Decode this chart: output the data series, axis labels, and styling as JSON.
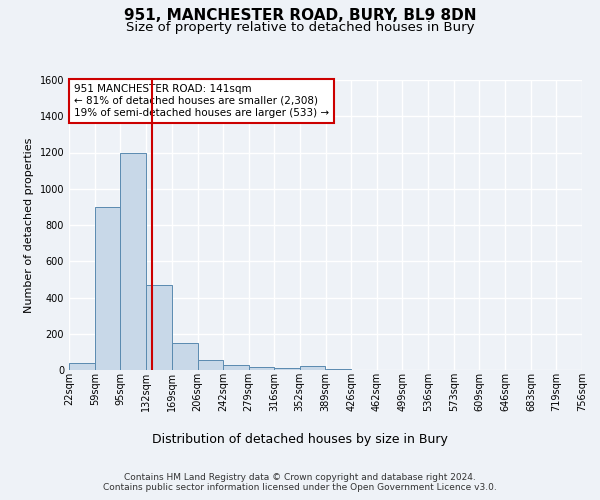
{
  "title1": "951, MANCHESTER ROAD, BURY, BL9 8DN",
  "title2": "Size of property relative to detached houses in Bury",
  "xlabel": "Distribution of detached houses by size in Bury",
  "ylabel": "Number of detached properties",
  "bin_edges": [
    22,
    59,
    95,
    132,
    169,
    206,
    242,
    279,
    316,
    352,
    389,
    426,
    462,
    499,
    536,
    573,
    609,
    646,
    683,
    719,
    756
  ],
  "bar_heights": [
    40,
    900,
    1200,
    470,
    150,
    55,
    25,
    15,
    10,
    20,
    5,
    0,
    0,
    0,
    0,
    0,
    0,
    0,
    0,
    0
  ],
  "bar_color": "#c8d8e8",
  "bar_edge_color": "#5a8ab0",
  "vline_x": 141,
  "vline_color": "#cc0000",
  "annotation_text": "951 MANCHESTER ROAD: 141sqm\n← 81% of detached houses are smaller (2,308)\n19% of semi-detached houses are larger (533) →",
  "annotation_box_color": "#ffffff",
  "annotation_box_edge": "#cc0000",
  "ylim": [
    0,
    1600
  ],
  "yticks": [
    0,
    200,
    400,
    600,
    800,
    1000,
    1200,
    1400,
    1600
  ],
  "footer_line1": "Contains HM Land Registry data © Crown copyright and database right 2024.",
  "footer_line2": "Contains public sector information licensed under the Open Government Licence v3.0.",
  "bg_color": "#eef2f7",
  "plot_bg_color": "#eef2f7",
  "grid_color": "#ffffff",
  "title1_fontsize": 11,
  "title2_fontsize": 9.5,
  "xlabel_fontsize": 9,
  "ylabel_fontsize": 8,
  "tick_fontsize": 7,
  "annotation_fontsize": 7.5,
  "footer_fontsize": 6.5
}
